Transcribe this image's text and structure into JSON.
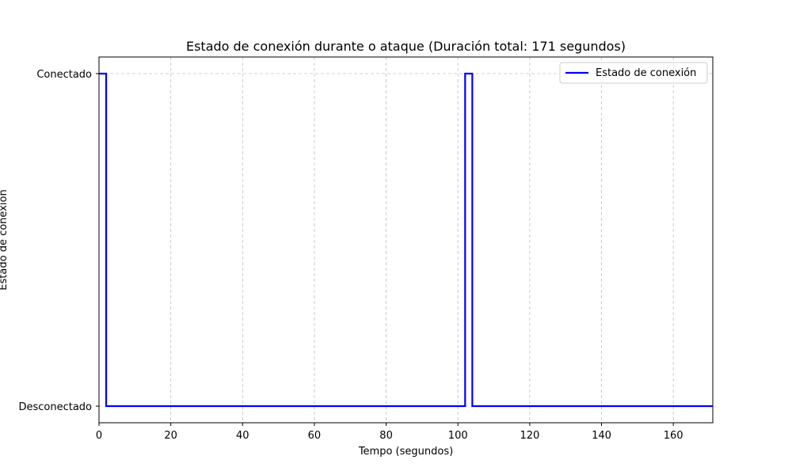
{
  "chart_data": {
    "type": "line",
    "step": "post",
    "title": "Estado de conexión durante o ataque (Duración total: 171 segundos)",
    "xlabel": "Tempo (segundos)",
    "ylabel": "Estado de conexión",
    "xlim": [
      0,
      171
    ],
    "ylim": [
      -0.05,
      1.05
    ],
    "xticks": [
      0,
      20,
      40,
      60,
      80,
      100,
      120,
      140,
      160
    ],
    "xtick_labels": [
      "0",
      "20",
      "40",
      "60",
      "80",
      "100",
      "120",
      "140",
      "160"
    ],
    "yticks": [
      0,
      1
    ],
    "ytick_labels": [
      "Desconectado",
      "Conectado"
    ],
    "grid": true,
    "legend_position": "top-right",
    "series": [
      {
        "name": "Estado de conexión",
        "color": "#0000ff",
        "x": [
          0,
          2,
          102,
          104,
          171
        ],
        "y": [
          1,
          0,
          1,
          0,
          0
        ]
      }
    ]
  }
}
